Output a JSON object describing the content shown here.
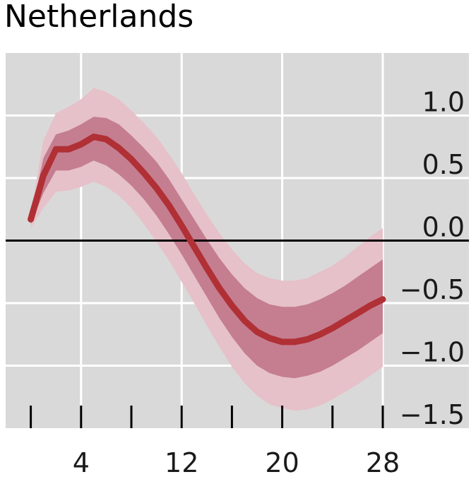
{
  "chart_data": {
    "type": "line",
    "title": "Netherlands",
    "xlabel": "",
    "ylabel": "",
    "x_ticks": [
      0,
      4,
      8,
      12,
      16,
      20,
      24,
      28
    ],
    "x_tick_labels": [
      "4",
      "12",
      "20",
      "28"
    ],
    "x_tick_label_values": [
      4,
      12,
      20,
      28
    ],
    "xlim": [
      -2,
      34.9
    ],
    "ylim": [
      -1.5,
      1.5
    ],
    "y_ticks": [
      1.0,
      0.5,
      0.0,
      -0.5,
      -1.0,
      -1.5
    ],
    "y_tick_labels": [
      "1.0",
      "0.5",
      "0.0",
      "−0.5",
      "−1.0",
      "−1.5"
    ],
    "y_axis_side": "right",
    "grid": true,
    "reference_line": 0.0,
    "x": [
      0,
      1,
      2,
      3,
      4,
      5,
      6,
      7,
      8,
      9,
      10,
      11,
      12,
      13,
      14,
      15,
      16,
      17,
      18,
      19,
      20,
      21,
      22,
      23,
      24,
      25,
      26,
      27,
      28
    ],
    "series": [
      {
        "values": [
          0.17,
          0.52,
          0.73,
          0.73,
          0.77,
          0.83,
          0.81,
          0.74,
          0.65,
          0.54,
          0.42,
          0.28,
          0.12,
          -0.05,
          -0.22,
          -0.38,
          -0.52,
          -0.64,
          -0.73,
          -0.78,
          -0.81,
          -0.81,
          -0.79,
          -0.75,
          -0.7,
          -0.64,
          -0.58,
          -0.52,
          -0.47
        ],
        "band_inner_upper": [
          0.2,
          0.66,
          0.85,
          0.88,
          0.93,
          0.99,
          0.98,
          0.93,
          0.84,
          0.74,
          0.63,
          0.49,
          0.33,
          0.17,
          0.01,
          -0.14,
          -0.27,
          -0.38,
          -0.46,
          -0.51,
          -0.53,
          -0.53,
          -0.51,
          -0.47,
          -0.42,
          -0.36,
          -0.29,
          -0.22,
          -0.15
        ],
        "band_inner_lower": [
          0.13,
          0.38,
          0.56,
          0.56,
          0.59,
          0.64,
          0.6,
          0.53,
          0.44,
          0.33,
          0.2,
          0.05,
          -0.11,
          -0.28,
          -0.45,
          -0.62,
          -0.77,
          -0.9,
          -1.0,
          -1.06,
          -1.09,
          -1.1,
          -1.08,
          -1.05,
          -1.0,
          -0.94,
          -0.88,
          -0.81,
          -0.74
        ],
        "band_outer_upper": [
          0.22,
          0.8,
          1.02,
          1.07,
          1.13,
          1.22,
          1.19,
          1.13,
          1.04,
          0.94,
          0.83,
          0.69,
          0.54,
          0.37,
          0.21,
          0.06,
          -0.07,
          -0.18,
          -0.26,
          -0.3,
          -0.32,
          -0.32,
          -0.3,
          -0.25,
          -0.2,
          -0.13,
          -0.05,
          0.03,
          0.1
        ],
        "band_outer_lower": [
          0.1,
          0.26,
          0.39,
          0.4,
          0.43,
          0.47,
          0.43,
          0.36,
          0.26,
          0.13,
          -0.01,
          -0.16,
          -0.33,
          -0.5,
          -0.68,
          -0.85,
          -1.01,
          -1.14,
          -1.24,
          -1.31,
          -1.34,
          -1.36,
          -1.35,
          -1.32,
          -1.27,
          -1.21,
          -1.15,
          -1.08,
          -1.01
        ]
      }
    ],
    "colors": {
      "plot_background": "#d9d9d9",
      "grid": "#ffffff",
      "line": "#b03035",
      "band_inner": "#c47e90",
      "band_outer": "#e6c1c9",
      "zero_line": "#000000"
    }
  }
}
